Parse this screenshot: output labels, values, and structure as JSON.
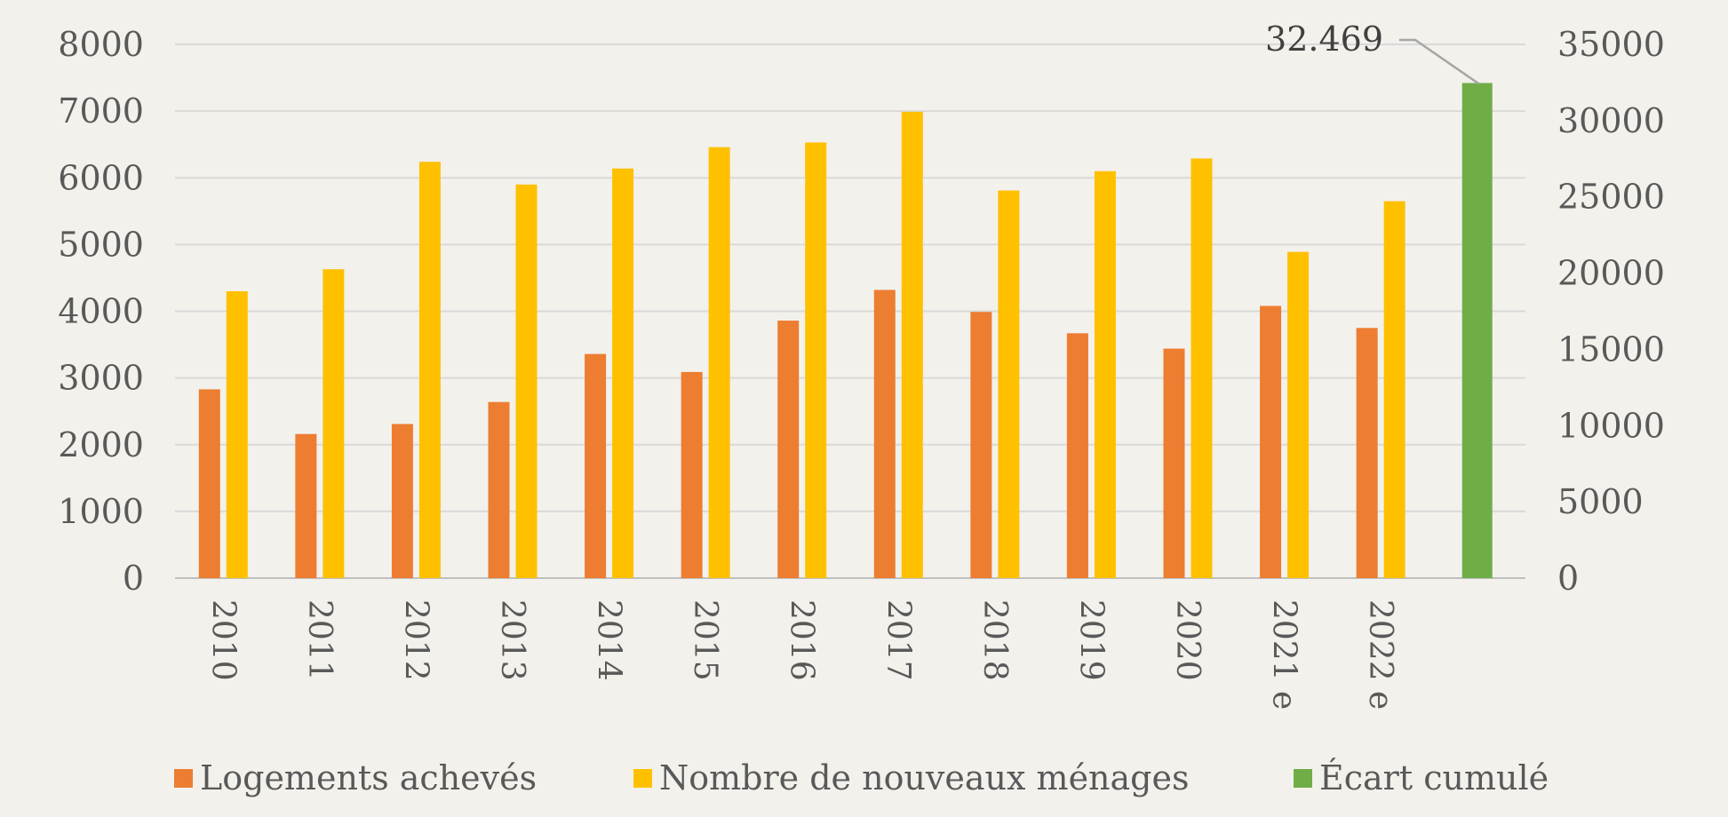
{
  "chart_data": {
    "type": "bar",
    "categories": [
      "2010",
      "2011",
      "2012",
      "2013",
      "2014",
      "2015",
      "2016",
      "2017",
      "2018",
      "2019",
      "2020",
      "2021 e",
      "2022 e",
      ""
    ],
    "series": [
      {
        "name": "Logements achevés",
        "axis": "left",
        "color": "#ed7d31",
        "values": [
          2830,
          2160,
          2310,
          2640,
          3360,
          3090,
          3860,
          4320,
          3990,
          3670,
          3440,
          4080,
          3750,
          null
        ]
      },
      {
        "name": "Nombre de nouveaux ménages",
        "axis": "left",
        "color": "#ffc000",
        "values": [
          4300,
          4630,
          6240,
          5900,
          6140,
          6460,
          6530,
          6990,
          5810,
          6100,
          6290,
          4890,
          5650,
          null
        ]
      },
      {
        "name": "Écart cumulé",
        "axis": "right",
        "color": "#70ad47",
        "values": [
          null,
          null,
          null,
          null,
          null,
          null,
          null,
          null,
          null,
          null,
          null,
          null,
          null,
          32469
        ]
      }
    ],
    "left_axis": {
      "range": [
        0,
        8000
      ],
      "ticks": [
        "0",
        "1000",
        "2000",
        "3000",
        "4000",
        "5000",
        "6000",
        "7000",
        "8000"
      ]
    },
    "right_axis": {
      "range": [
        0,
        35000
      ],
      "ticks": [
        "0",
        "5000",
        "10000",
        "15000",
        "20000",
        "25000",
        "30000",
        "35000"
      ]
    },
    "data_labels": [
      {
        "series": "Écart cumulé",
        "category_index": 13,
        "text": "32.469"
      }
    ],
    "gridlines": true,
    "legend_position": "bottom",
    "x_tick_rotation": "vertical"
  }
}
